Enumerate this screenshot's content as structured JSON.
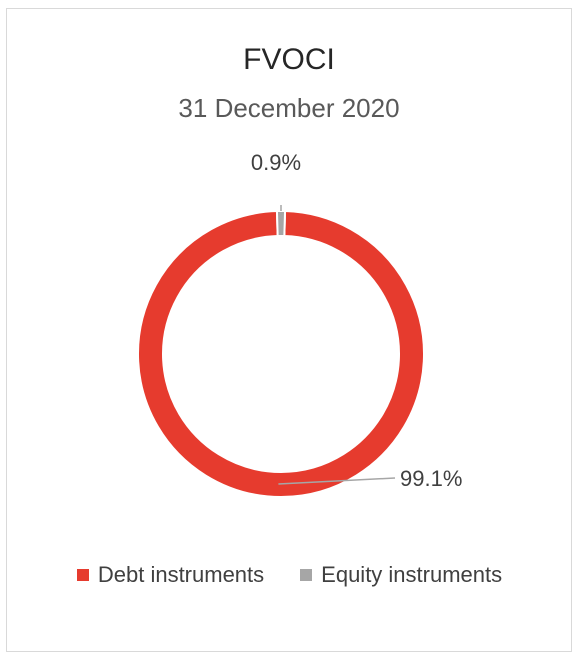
{
  "chart_data": {
    "type": "pie",
    "variant": "donut",
    "title": "FVOCI",
    "subtitle": "31 December 2020",
    "categories": [
      "Debt instruments",
      "Equity instruments"
    ],
    "values": [
      99.1,
      0.9
    ],
    "value_labels": [
      "99.1%",
      "0.9%"
    ],
    "colors": [
      "#e63b2e",
      "#a6a6a6"
    ],
    "legend_position": "bottom"
  }
}
